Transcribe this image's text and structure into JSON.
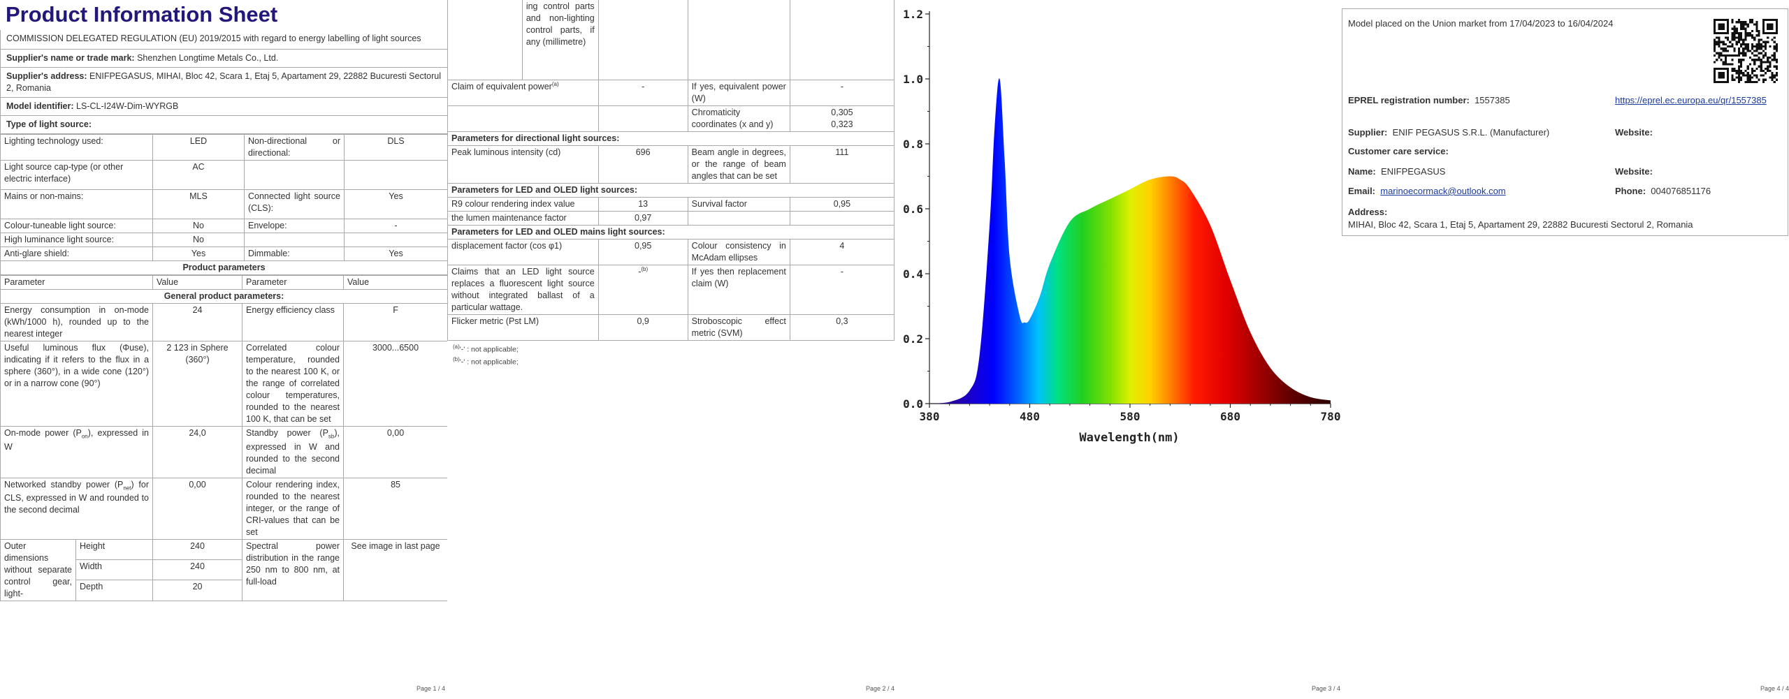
{
  "page1": {
    "title": "Product Information Sheet",
    "regulation": "COMMISSION DELEGATED REGULATION (EU) 2019/2015 with regard to energy labelling of light sources",
    "supplier_name_label": "Supplier's name or trade mark:",
    "supplier_name": "Shenzhen Longtime Metals Co., Ltd.",
    "supplier_address_label": "Supplier's address:",
    "supplier_address": "ENIFPEGASUS, MIHAI, Bloc 42, Scara 1, Etaj 5, Apartament 29, 22882 Bucuresti Sectorul 2, Romania",
    "model_label": "Model identifier:",
    "model": "LS-CL-I24W-Dim-WYRGB",
    "type_header": "Type of light source:",
    "type_rows": [
      {
        "p1": "Lighting technology used:",
        "v1": "LED",
        "p2": "Non-directional or directional:",
        "v2": "DLS"
      },
      {
        "p1": "Light source cap-type (or other electric interface)",
        "v1": "AC",
        "p2": "",
        "v2": ""
      },
      {
        "p1": "Mains or non-mains:",
        "v1": "MLS",
        "p2": "Connected light source (CLS):",
        "v2": "Yes"
      },
      {
        "p1": "Colour-tuneable light source:",
        "v1": "No",
        "p2": "Envelope:",
        "v2": "-"
      },
      {
        "p1": "High luminance light source:",
        "v1": "No",
        "p2": "",
        "v2": ""
      },
      {
        "p1": "Anti-glare shield:",
        "v1": "Yes",
        "p2": "Dimmable:",
        "v2": "Yes"
      }
    ],
    "product_params_header": "Product parameters",
    "col_parameter": "Parameter",
    "col_value": "Value",
    "general_header": "General product parameters:",
    "general_rows": [
      {
        "p1": "Energy consumption in on-mode (kWh/1000 h), rounded up to the nearest integer",
        "v1": "24",
        "p2": "Energy efficiency class",
        "v2": "F"
      },
      {
        "p1": "Useful luminous flux (Φuse), indicating if it refers to the flux in a sphere (360°), in a wide cone (120°) or in a narrow cone (90°)",
        "v1": "2 123 in Sphere (360°)",
        "p2": "Correlated colour temperature, rounded to the nearest 100 K, or the range of correlated colour temperatures, rounded to the nearest 100 K, that can be set",
        "v2": "3000...6500"
      },
      {
        "p1a": "On-mode power (P",
        "p1sub": "on",
        "p1b": "), expressed in W",
        "v1": "24,0",
        "p2a": "Standby power (P",
        "p2sub": "sb",
        "p2b": "), expressed in W and rounded to the second decimal",
        "v2": "0,00"
      },
      {
        "p1a": "Networked standby power (P",
        "p1sub": "net",
        "p1b": ") for CLS, expressed in W and rounded to the second decimal",
        "v1": "0,00",
        "p2": "Colour rendering index, rounded to the nearest integer, or the range of CRI-values that can be set",
        "v2": "85"
      }
    ],
    "outer_dims_label": "Outer dimensions without separate control gear, light-",
    "dims": [
      {
        "name": "Height",
        "value": "240"
      },
      {
        "name": "Width",
        "value": "240"
      },
      {
        "name": "Depth",
        "value": "20"
      }
    ],
    "spd_label": "Spectral power distribution in the range 250 nm to 800 nm, at full-load",
    "spd_value": "See image in last page",
    "page_num": "Page 1 / 4"
  },
  "page2": {
    "cont_text": "ing control parts and non-lighting control parts, if any (millimetre)",
    "equiv_label": "Claim of equivalent power",
    "equiv_sup": "(a)",
    "equiv_value": "-",
    "equiv_p2": "If yes, equivalent power (W)",
    "equiv_v2": "-",
    "chroma_label": "Chromaticity coordinates (x and y)",
    "chroma_x": "0,305",
    "chroma_y": "0,323",
    "directional_header": "Parameters for directional light sources:",
    "peak_label": "Peak luminous intensity (cd)",
    "peak_value": "696",
    "beam_label": "Beam angle in degrees, or the range of beam angles that can be set",
    "beam_value": "111",
    "led_header": "Parameters for LED and OLED light sources:",
    "r9_label": "R9 colour rendering index value",
    "r9_value": "13",
    "survival_label": "Survival factor",
    "survival_value": "0,95",
    "lumen_label": "the lumen maintenance factor",
    "lumen_value": "0,97",
    "mains_header": "Parameters for LED and OLED mains light sources:",
    "disp_label": "displacement factor (cos φ1)",
    "disp_value": "0,95",
    "mcadam_label": "Colour consistency in McAdam ellipses",
    "mcadam_value": "4",
    "claims_label": "Claims that an LED light source replaces a fluorescent light source without integrated ballast of a particular wattage.",
    "claims_value": "-",
    "claims_sup": "(b)",
    "claims_p2": "If yes then replacement claim (W)",
    "claims_v2": "-",
    "flicker_label": "Flicker metric (Pst LM)",
    "flicker_value": "0,9",
    "strobo_label": "Stroboscopic effect metric (SVM)",
    "strobo_value": "0,3",
    "note_a_sup": "(a)",
    "note_a": "'-' : not applicable;",
    "note_b_sup": "(b)",
    "note_b": "'-' : not applicable;",
    "page_num": "Page 2 / 4"
  },
  "page3": {
    "chart_data": {
      "type": "area",
      "xlabel": "Wavelength(nm)",
      "ylabel": "",
      "xlim": [
        380,
        780
      ],
      "ylim": [
        0,
        1.2
      ],
      "x_ticks": [
        380,
        480,
        580,
        680,
        780
      ],
      "y_ticks": [
        "0.0",
        "0.2",
        "0.4",
        "0.6",
        "0.8",
        "1.0",
        "1.2"
      ],
      "x": [
        380,
        400,
        420,
        430,
        440,
        445,
        450,
        455,
        460,
        470,
        475,
        480,
        490,
        500,
        520,
        540,
        560,
        580,
        600,
        620,
        630,
        640,
        660,
        680,
        700,
        720,
        740,
        760,
        780
      ],
      "values": [
        0.0,
        0.005,
        0.04,
        0.15,
        0.55,
        0.85,
        1.0,
        0.75,
        0.45,
        0.27,
        0.25,
        0.26,
        0.33,
        0.43,
        0.56,
        0.6,
        0.63,
        0.66,
        0.69,
        0.7,
        0.69,
        0.66,
        0.55,
        0.38,
        0.22,
        0.11,
        0.05,
        0.02,
        0.01
      ],
      "grid": false
    },
    "page_num": "Page 3 / 4"
  },
  "page4": {
    "placed": "Model placed on the Union market from 17/04/2023 to 16/04/2024",
    "eprel_label": "EPREL registration number:",
    "eprel_value": "1557385",
    "eprel_link": "https://eprel.ec.europa.eu/qr/1557385",
    "supplier_label": "Supplier:",
    "supplier_value": "ENIF PEGASUS S.R.L. (Manufacturer)",
    "website_label": "Website:",
    "care_label": "Customer care service:",
    "name_label": "Name:",
    "name_value": "ENIFPEGASUS",
    "website2_label": "Website:",
    "email_label": "Email:",
    "email_value": "marinoecormack@outlook.com",
    "phone_label": "Phone:",
    "phone_value": "004076851176",
    "address_label": "Address:",
    "address_value": "MIHAI, Bloc 42, Scara 1, Etaj 5, Apartament 29, 22882 Bucuresti Sectorul 2, Romania",
    "qr_icon": "qr-code-icon",
    "page_num": "Page 4 / 4"
  }
}
